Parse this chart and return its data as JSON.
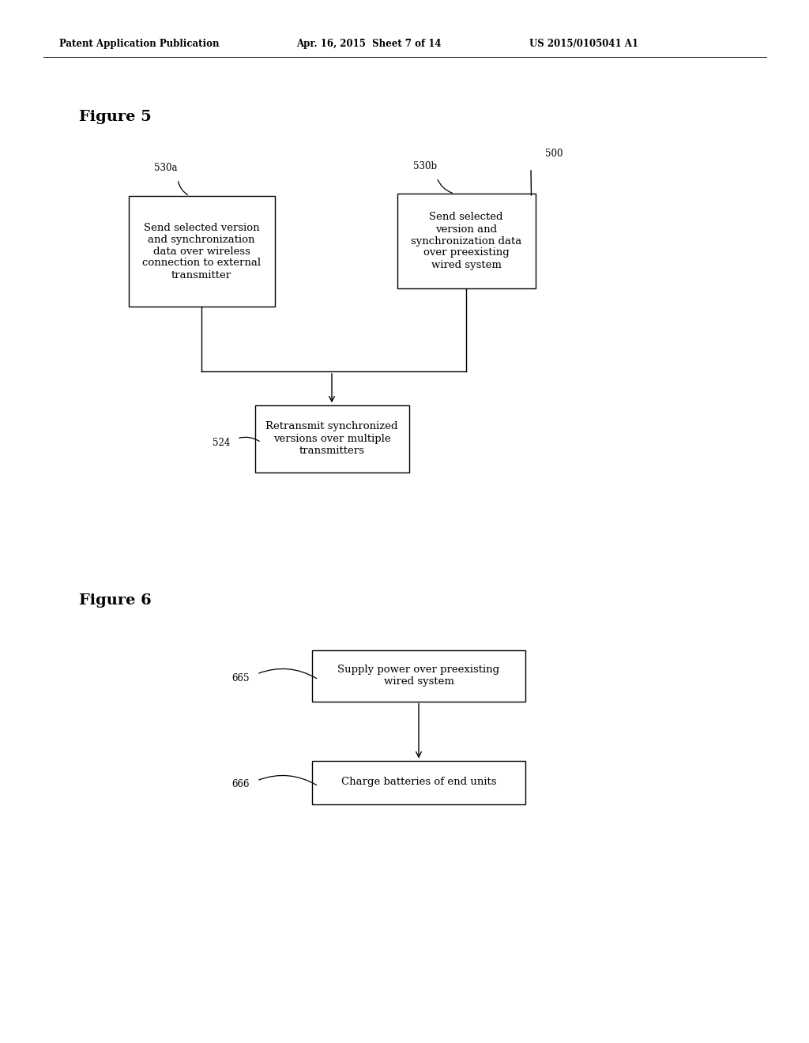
{
  "background_color": "#ffffff",
  "header_left": "Patent Application Publication",
  "header_center": "Apr. 16, 2015  Sheet 7 of 14",
  "header_right": "US 2015/0105041 A1",
  "fig5_title": "Figure 5",
  "fig5_box1_text": "Send selected version\nand synchronization\ndata over wireless\nconnection to external\ntransmitter",
  "fig5_box1_label": "530a",
  "fig5_box2_text": "Send selected\nversion and\nsynchronization data\nover preexisting\nwired system",
  "fig5_box2_label": "530b",
  "fig5_box2_label2": "500",
  "fig5_box3_text": "Retransmit synchronized\nversions over multiple\ntransmitters",
  "fig5_box3_label": "524",
  "fig6_title": "Figure 6",
  "fig6_box1_text": "Supply power over preexisting\nwired system",
  "fig6_box1_label": "665",
  "fig6_box2_text": "Charge batteries of end units",
  "fig6_box2_label": "666",
  "box_edge_color": "#000000",
  "box_face_color": "#ffffff",
  "arrow_color": "#000000",
  "text_color": "#000000",
  "line_width": 1.0,
  "font_size_box": 9.5,
  "font_size_label": 8.5,
  "font_size_header": 8.5,
  "font_size_title": 14
}
